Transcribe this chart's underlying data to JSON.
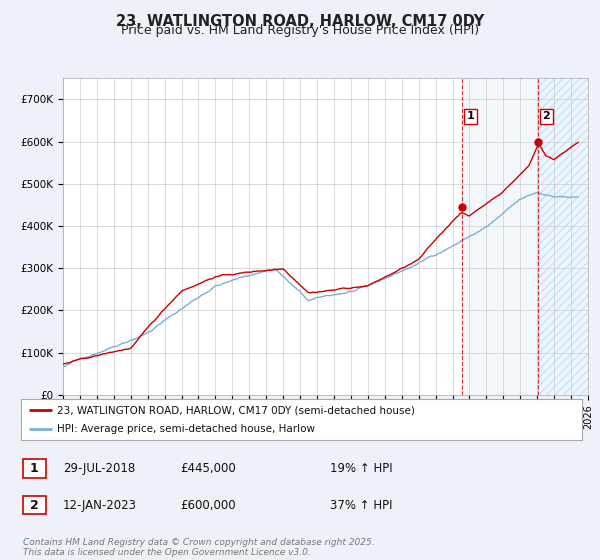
{
  "title": "23, WATLINGTON ROAD, HARLOW, CM17 0DY",
  "subtitle": "Price paid vs. HM Land Registry's House Price Index (HPI)",
  "title_fontsize": 10.5,
  "subtitle_fontsize": 9,
  "ylim": [
    0,
    750000
  ],
  "yticks": [
    0,
    100000,
    200000,
    300000,
    400000,
    500000,
    600000,
    700000
  ],
  "ytick_labels": [
    "£0",
    "£100K",
    "£200K",
    "£300K",
    "£400K",
    "£500K",
    "£600K",
    "£700K"
  ],
  "background_color": "#eef2f8",
  "plot_bg_color": "#ffffff",
  "grid_color": "#cccccc",
  "red_line_color": "#cc0000",
  "blue_line_color": "#7bafd4",
  "marker1_x": 2018.57,
  "marker1_y": 445000,
  "marker2_x": 2023.03,
  "marker2_y": 600000,
  "vline1_x": 2018.57,
  "vline2_x": 2023.03,
  "legend_label_red": "23, WATLINGTON ROAD, HARLOW, CM17 0DY (semi-detached house)",
  "legend_label_blue": "HPI: Average price, semi-detached house, Harlow",
  "table_row1": [
    "1",
    "29-JUL-2018",
    "£445,000",
    "19% ↑ HPI"
  ],
  "table_row2": [
    "2",
    "12-JAN-2023",
    "£600,000",
    "37% ↑ HPI"
  ],
  "footer": "Contains HM Land Registry data © Crown copyright and database right 2025.\nThis data is licensed under the Open Government Licence v3.0.",
  "xmin": 1995,
  "xmax": 2026
}
